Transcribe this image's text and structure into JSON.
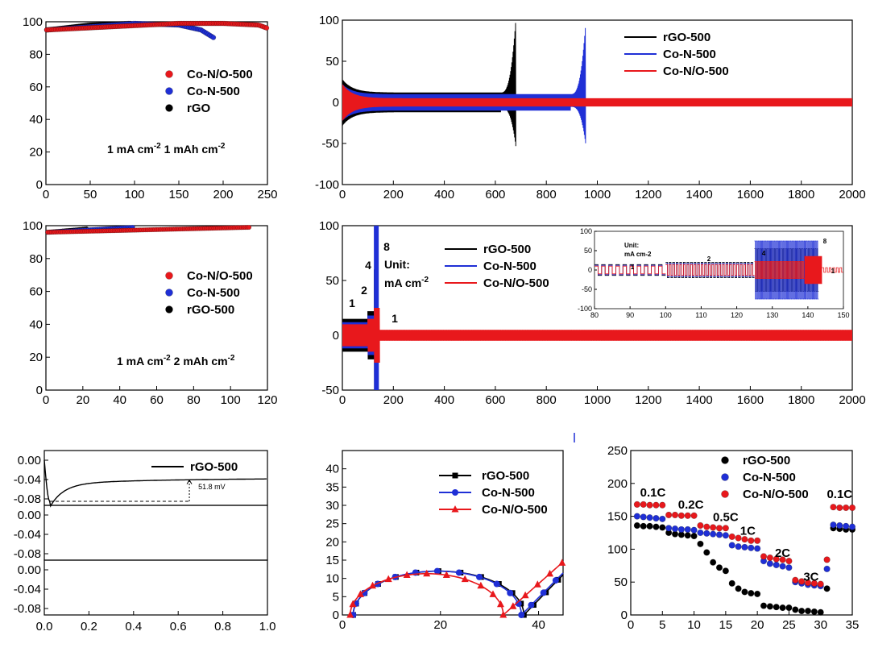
{
  "colors": {
    "rGO": "#000000",
    "CoN": "#1f2fd6",
    "CoNO": "#e8181c"
  },
  "chart_data": [
    {
      "id": "p1",
      "type": "scatter",
      "xlim": [
        0,
        250
      ],
      "ylim": [
        0,
        100
      ],
      "xticks": [
        "0",
        "50",
        "100",
        "150",
        "200",
        "250"
      ],
      "yticks": [
        "0",
        "20",
        "40",
        "60",
        "80",
        "100"
      ],
      "series": [
        {
          "name": "Co-N/O-500",
          "color": "#e8181c",
          "x": [
            1,
            150,
            200,
            240,
            250
          ],
          "y": [
            95,
            99,
            99,
            98,
            96
          ]
        },
        {
          "name": "Co-N-500",
          "color": "#1f2fd6",
          "x": [
            1,
            100,
            150,
            175,
            190
          ],
          "y": [
            95,
            99,
            98,
            95,
            90
          ]
        },
        {
          "name": "rGO",
          "color": "#000000",
          "x": [
            1,
            50,
            95
          ],
          "y": [
            95,
            98,
            99
          ]
        }
      ],
      "annotation": {
        "a": "1 mA cm",
        "sup1": "-2",
        "b": "  1 mAh cm",
        "sup2": "-2"
      }
    },
    {
      "id": "p2",
      "type": "line",
      "xlim": [
        0,
        2000
      ],
      "ylim": [
        -100,
        100
      ],
      "xticks": [
        "0",
        "200",
        "400",
        "600",
        "800",
        "1000",
        "1200",
        "1400",
        "1600",
        "1800",
        "2000"
      ],
      "yticks": [
        "-100",
        "-50",
        "0",
        "50",
        "100"
      ],
      "series": [
        {
          "name": "rGO-500",
          "color": "#000000",
          "end": 680,
          "amp_start": 28,
          "amp_mid": 12,
          "spike": 100
        },
        {
          "name": "Co-N-500",
          "color": "#1f2fd6",
          "end": 955,
          "amp_start": 22,
          "amp_mid": 10,
          "spike": 100
        },
        {
          "name": "Co-N/O-500",
          "color": "#e8181c",
          "end": 2000,
          "amp_start": 22,
          "amp_mid": 5,
          "spike": 0
        }
      ]
    },
    {
      "id": "p3",
      "type": "scatter",
      "xlim": [
        0,
        120
      ],
      "ylim": [
        0,
        100
      ],
      "xticks": [
        "0",
        "20",
        "40",
        "60",
        "80",
        "100",
        "120"
      ],
      "yticks": [
        "0",
        "20",
        "40",
        "60",
        "80",
        "100"
      ],
      "series": [
        {
          "name": "Co-N/O-500",
          "color": "#e8181c",
          "x": [
            1,
            110
          ],
          "y": [
            96,
            99
          ]
        },
        {
          "name": "Co-N-500",
          "color": "#1f2fd6",
          "x": [
            1,
            47
          ],
          "y": [
            96,
            99
          ]
        },
        {
          "name": "rGO-500",
          "color": "#000000",
          "x": [
            1,
            22
          ],
          "y": [
            96,
            98
          ]
        }
      ],
      "annotation": {
        "a": "1 mA cm",
        "sup1": "-2",
        "b": "  2 mAh cm",
        "sup2": "-2"
      }
    },
    {
      "id": "p4",
      "type": "line",
      "xlim": [
        0,
        2000
      ],
      "ylim": [
        -50,
        100
      ],
      "xticks": [
        "0",
        "200",
        "400",
        "600",
        "800",
        "1000",
        "1200",
        "1400",
        "1600",
        "1800",
        "2000"
      ],
      "yticks": [
        "-50",
        "0",
        "50",
        "100"
      ],
      "series": [
        {
          "name": "rGO-500",
          "color": "#000000"
        },
        {
          "name": "Co-N-500",
          "color": "#1f2fd6"
        },
        {
          "name": "Co-N/O-500",
          "color": "#e8181c"
        }
      ],
      "rate_labels": [
        "1",
        "2",
        "4",
        "8",
        "1"
      ],
      "unit": "Unit:",
      "unit2a": "mA cm",
      "unit2sup": "-2",
      "inset": {
        "xlim": [
          80,
          150
        ],
        "ylim": [
          -100,
          100
        ],
        "xticks": [
          "80",
          "90",
          "100",
          "110",
          "120",
          "130",
          "140",
          "150"
        ],
        "yticks": [
          "-100",
          "-50",
          "0",
          "50",
          "100"
        ],
        "unit": "Unit:",
        "unit2": "mA cm-2",
        "rate_labels": [
          "1",
          "2",
          "4",
          "8",
          "1"
        ]
      }
    },
    {
      "id": "p5",
      "type": "line",
      "xlim": [
        0,
        1.0
      ],
      "xticks": [
        "0.0",
        "0.2",
        "0.4",
        "0.6",
        "0.8",
        "1.0"
      ],
      "yticks": [
        "0.00",
        "-0.04",
        "-0.08"
      ],
      "series": [
        {
          "name": "rGO-500",
          "color": "#000000"
        }
      ],
      "annotation": "51.8 mV"
    },
    {
      "id": "p6",
      "type": "line",
      "xlim": [
        0,
        45
      ],
      "ylim": [
        0,
        45
      ],
      "xticks": [
        "0",
        "20",
        "40"
      ],
      "yticks": [
        "0",
        "5",
        "10",
        "15",
        "20",
        "25",
        "30",
        "35",
        "40"
      ],
      "series": [
        {
          "name": "rGO-500",
          "color": "#000000",
          "marker": "square",
          "start": 2.2,
          "end": 37,
          "peak": 12,
          "tail_end": 45,
          "tail_top": 11
        },
        {
          "name": "Co-N-500",
          "color": "#1f2fd6",
          "marker": "circle",
          "start": 2.2,
          "end": 36.5,
          "peak": 12,
          "tail_end": 45,
          "tail_top": 11.5
        },
        {
          "name": "Co-N/O-500",
          "color": "#e8181c",
          "marker": "triangle",
          "start": 1.6,
          "end": 32.8,
          "peak": 11.3,
          "tail_end": 45,
          "tail_top": 14.5
        }
      ]
    },
    {
      "id": "p7",
      "type": "scatter",
      "xlim": [
        0,
        35
      ],
      "ylim": [
        0,
        250
      ],
      "xticks": [
        "0",
        "5",
        "10",
        "15",
        "20",
        "25",
        "30",
        "35"
      ],
      "yticks": [
        "0",
        "50",
        "100",
        "150",
        "200",
        "250"
      ],
      "series": [
        {
          "name": "rGO-500",
          "color": "#000000",
          "x": [
            1,
            2,
            3,
            4,
            5,
            6,
            7,
            8,
            9,
            10,
            11,
            12,
            13,
            14,
            15,
            16,
            17,
            18,
            19,
            20,
            21,
            22,
            23,
            24,
            25,
            26,
            27,
            28,
            29,
            30,
            31,
            32,
            33,
            34,
            35
          ],
          "y": [
            136,
            135,
            135,
            134,
            133,
            125,
            123,
            122,
            121,
            120,
            108,
            95,
            80,
            72,
            67,
            48,
            40,
            35,
            33,
            32,
            14,
            13,
            12,
            11,
            11,
            8,
            6,
            6,
            5,
            4,
            40,
            132,
            131,
            130,
            130
          ]
        },
        {
          "name": "Co-N-500",
          "color": "#1f2fd6",
          "x": [
            1,
            2,
            3,
            4,
            5,
            6,
            7,
            8,
            9,
            10,
            11,
            12,
            13,
            14,
            15,
            16,
            17,
            18,
            19,
            20,
            21,
            22,
            23,
            24,
            25,
            26,
            27,
            28,
            29,
            30,
            31,
            32,
            33,
            34,
            35
          ],
          "y": [
            150,
            149,
            148,
            147,
            146,
            132,
            131,
            130,
            130,
            129,
            125,
            124,
            123,
            122,
            121,
            106,
            104,
            103,
            102,
            101,
            82,
            78,
            76,
            74,
            72,
            50,
            48,
            46,
            45,
            44,
            70,
            137,
            136,
            135,
            134
          ]
        },
        {
          "name": "Co-N/O-500",
          "color": "#e8181c",
          "x": [
            1,
            2,
            3,
            4,
            5,
            6,
            7,
            8,
            9,
            10,
            11,
            12,
            13,
            14,
            15,
            16,
            17,
            18,
            19,
            20,
            21,
            22,
            23,
            24,
            25,
            26,
            27,
            28,
            29,
            30,
            31,
            32,
            33,
            34,
            35
          ],
          "y": [
            168,
            168,
            167,
            167,
            167,
            152,
            152,
            151,
            151,
            151,
            136,
            134,
            133,
            132,
            132,
            119,
            117,
            115,
            113,
            113,
            89,
            87,
            85,
            84,
            82,
            53,
            51,
            49,
            48,
            47,
            84,
            164,
            163,
            163,
            163
          ]
        }
      ],
      "rate_labels": [
        {
          "text": "0.1C",
          "x": 3.5,
          "y": 180
        },
        {
          "text": "0.2C",
          "x": 9.5,
          "y": 162
        },
        {
          "text": "0.5C",
          "x": 15,
          "y": 143
        },
        {
          "text": "1C",
          "x": 18.5,
          "y": 122
        },
        {
          "text": "2C",
          "x": 24,
          "y": 88
        },
        {
          "text": "3C",
          "x": 28.5,
          "y": 52
        },
        {
          "text": "0.1C",
          "x": 33,
          "y": 178
        }
      ]
    }
  ]
}
